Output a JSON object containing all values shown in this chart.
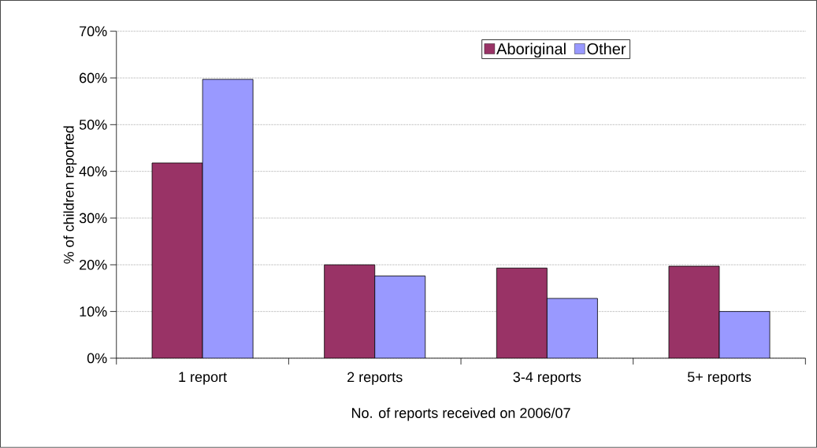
{
  "chart_data": {
    "type": "bar",
    "xlabel": "No. of reports received on 2006/07",
    "ylabel": "% of children reported",
    "categories": [
      "1 report",
      "2 reports",
      "3-4 reports",
      "5+ reports"
    ],
    "series": [
      {
        "name": "Aboriginal",
        "color": "#993366",
        "values": [
          41.8,
          20.0,
          19.3,
          19.7
        ]
      },
      {
        "name": "Other",
        "color": "#9999ff",
        "values": [
          59.7,
          17.6,
          12.8,
          10.0
        ]
      }
    ],
    "ylim": [
      0,
      70
    ],
    "yticks": [
      {
        "value": 0,
        "label": "0%"
      },
      {
        "value": 10,
        "label": "10%"
      },
      {
        "value": 20,
        "label": "20%"
      },
      {
        "value": 30,
        "label": "30%"
      },
      {
        "value": 40,
        "label": "40%"
      },
      {
        "value": 50,
        "label": "50%"
      },
      {
        "value": 60,
        "label": "60%"
      },
      {
        "value": 70,
        "label": "70%"
      }
    ],
    "grid": "y",
    "legend": "top right"
  }
}
